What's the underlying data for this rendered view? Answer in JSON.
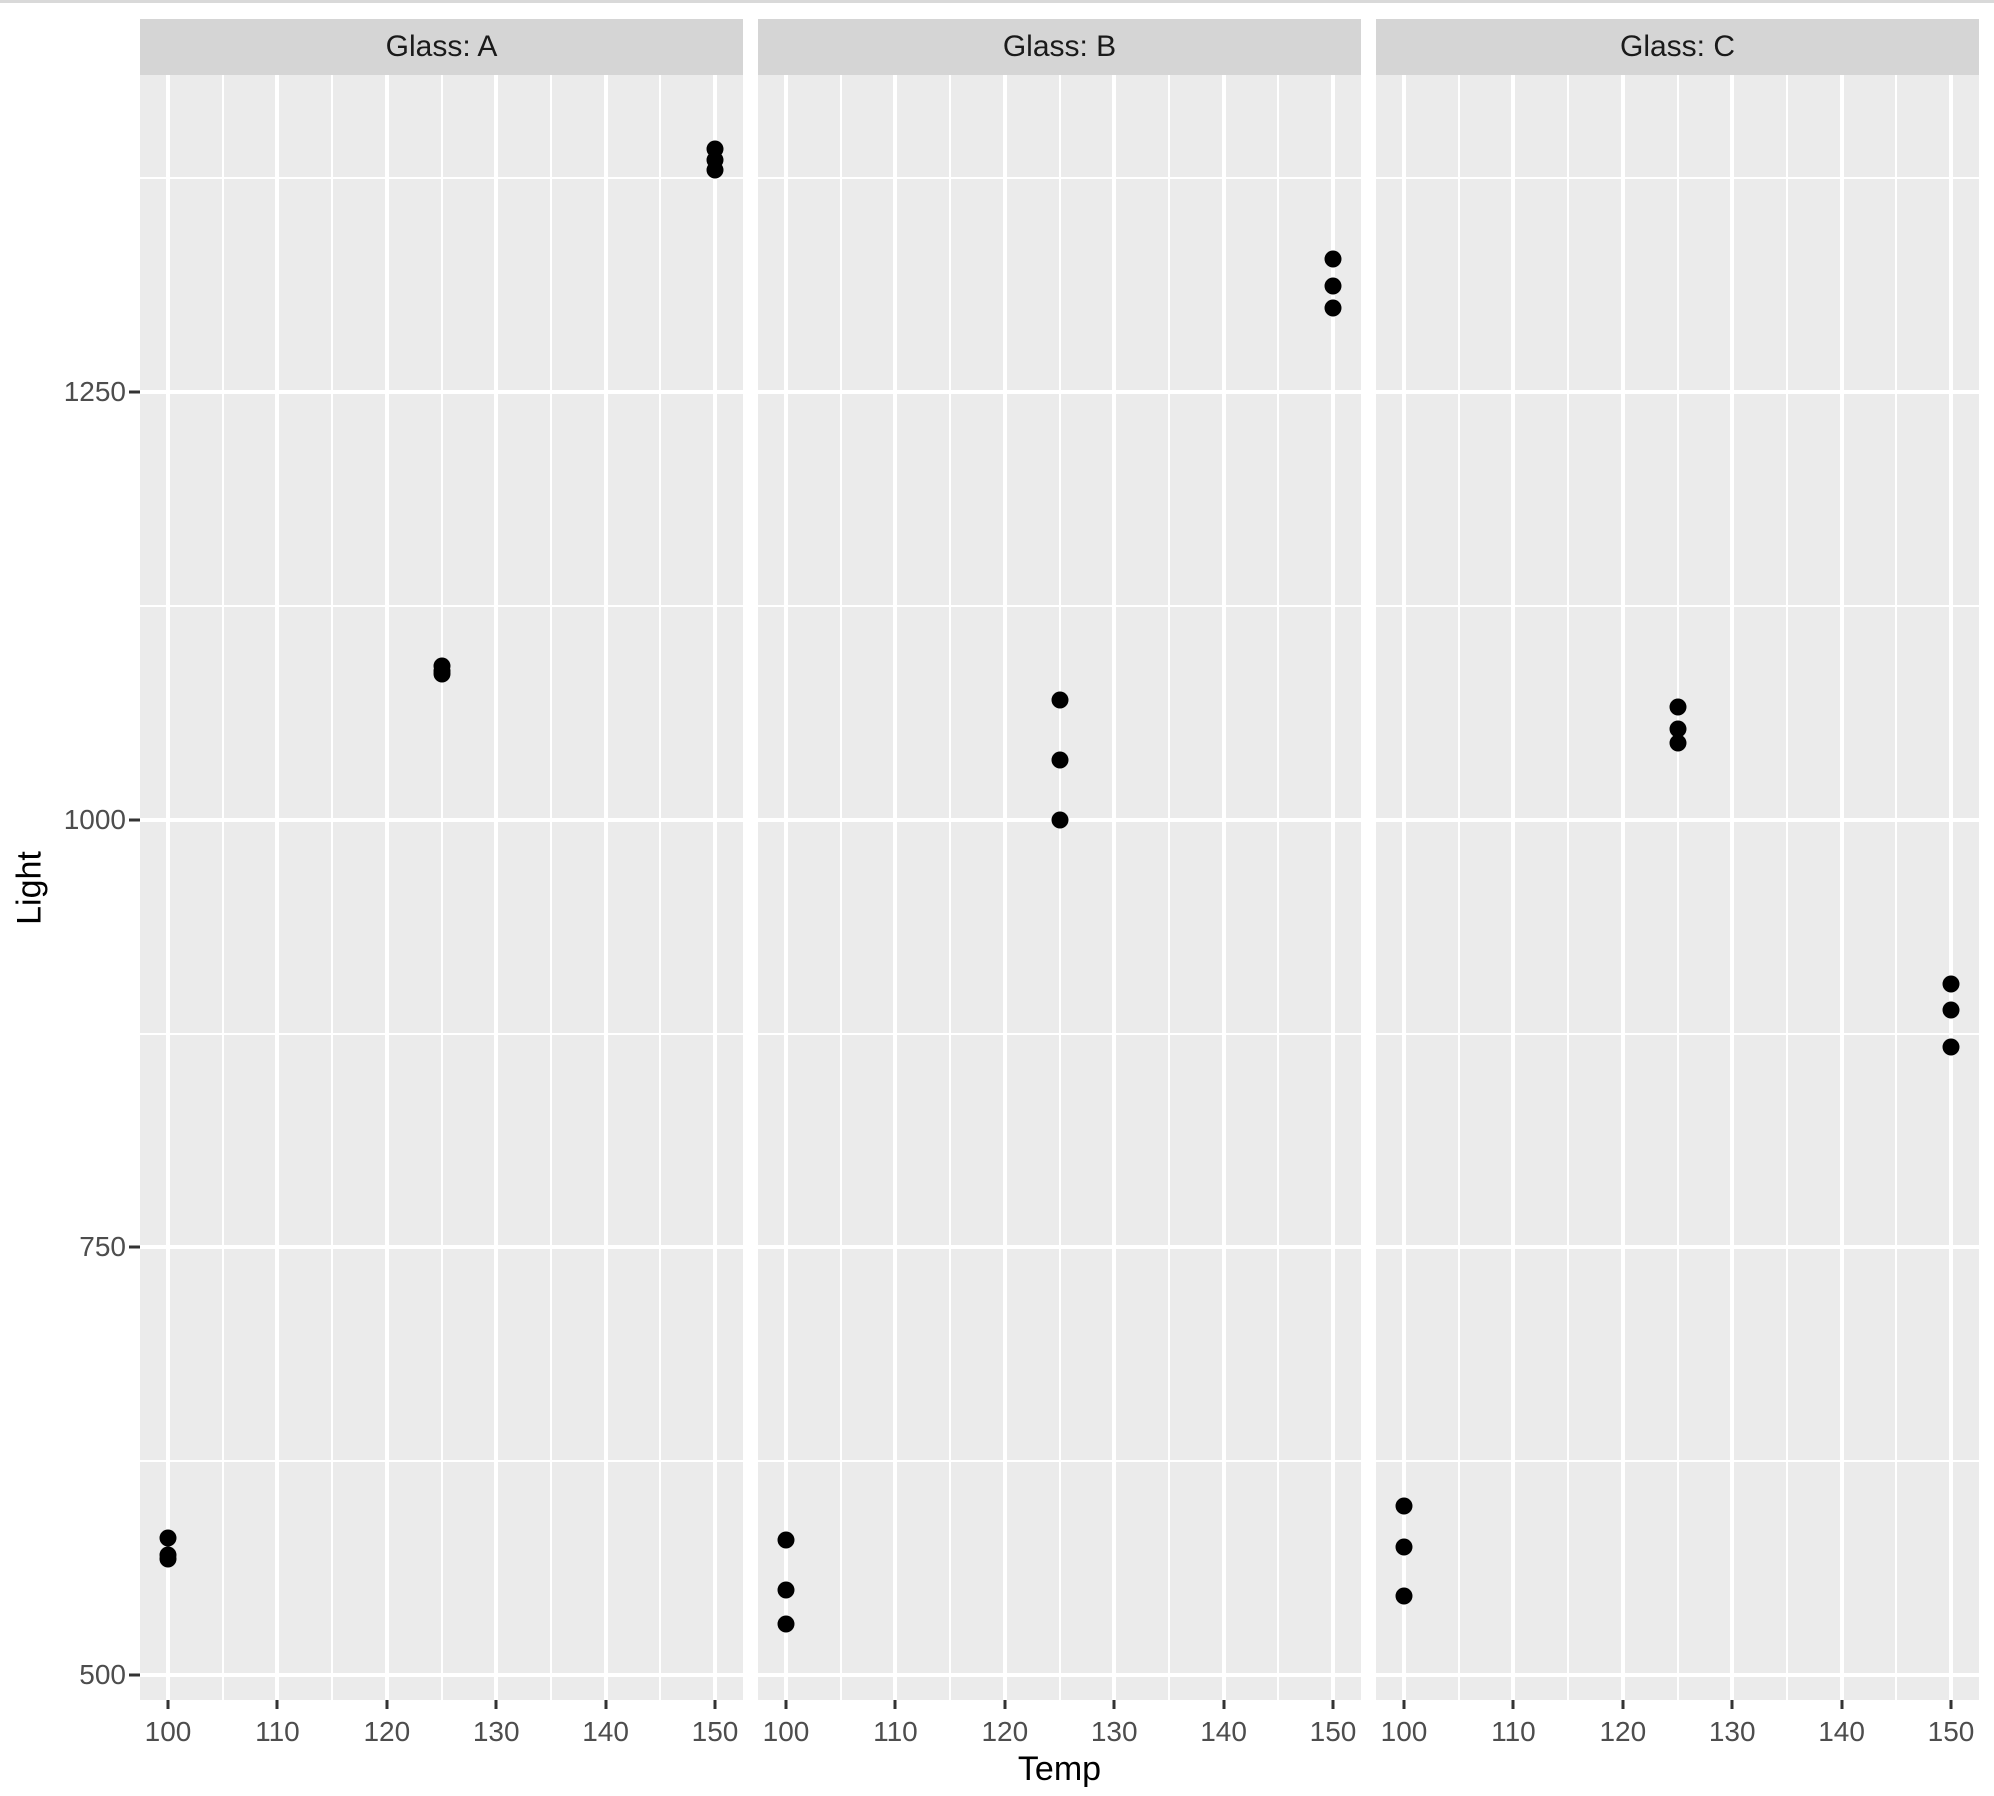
{
  "style": {
    "background": "#ffffff",
    "panel_bg": "#ebebeb",
    "strip_bg": "#d5d5d5",
    "strip_text": "#1a1a1a",
    "grid": "#ffffff",
    "tick": "#333333",
    "tick_label": "#4d4d4d",
    "title": "#000000",
    "point": "#000000"
  },
  "chart_data": {
    "type": "scatter",
    "title": "",
    "xlabel": "Temp",
    "ylabel": "Light",
    "facet_variable": "Glass",
    "legend": "none",
    "grid": true,
    "x_ticks": [
      100,
      110,
      120,
      130,
      140,
      150
    ],
    "x_minor": [
      105,
      115,
      125,
      135,
      145
    ],
    "y_ticks": [
      500,
      750,
      1000,
      1250
    ],
    "y_minor": [
      625,
      875,
      1125,
      1375
    ],
    "x_domain": [
      97.44,
      152.56
    ],
    "y_domain": [
      485.4,
      1435.4
    ],
    "xlim": [
      100,
      150
    ],
    "ylim": [
      500,
      1250
    ],
    "facets": [
      {
        "label": "Glass: A",
        "points": [
          {
            "x": 100,
            "y": 580
          },
          {
            "x": 100,
            "y": 570
          },
          {
            "x": 100,
            "y": 568
          },
          {
            "x": 125,
            "y": 1090
          },
          {
            "x": 125,
            "y": 1087
          },
          {
            "x": 125,
            "y": 1085
          },
          {
            "x": 150,
            "y": 1392
          },
          {
            "x": 150,
            "y": 1386
          },
          {
            "x": 150,
            "y": 1380
          }
        ]
      },
      {
        "label": "Glass: B",
        "points": [
          {
            "x": 100,
            "y": 579
          },
          {
            "x": 100,
            "y": 550
          },
          {
            "x": 100,
            "y": 530
          },
          {
            "x": 125,
            "y": 1070
          },
          {
            "x": 125,
            "y": 1035
          },
          {
            "x": 125,
            "y": 1000
          },
          {
            "x": 150,
            "y": 1328
          },
          {
            "x": 150,
            "y": 1312
          },
          {
            "x": 150,
            "y": 1299
          }
        ]
      },
      {
        "label": "Glass: C",
        "points": [
          {
            "x": 100,
            "y": 599
          },
          {
            "x": 100,
            "y": 575
          },
          {
            "x": 100,
            "y": 546
          },
          {
            "x": 125,
            "y": 1066
          },
          {
            "x": 125,
            "y": 1053
          },
          {
            "x": 125,
            "y": 1045
          },
          {
            "x": 150,
            "y": 904
          },
          {
            "x": 150,
            "y": 889
          },
          {
            "x": 150,
            "y": 867
          }
        ]
      }
    ]
  }
}
